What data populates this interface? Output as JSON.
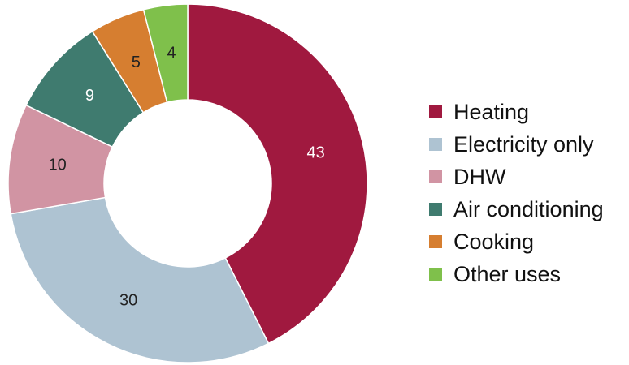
{
  "chart_data": {
    "type": "pie",
    "variant": "donut",
    "title": "",
    "legend_position": "right",
    "series": [
      {
        "name": "Heating",
        "value": 43,
        "color": "#A0193F",
        "label_color": "#ffffff"
      },
      {
        "name": "Electricity only",
        "value": 30,
        "color": "#AEC3D2",
        "label_color": "#222222"
      },
      {
        "name": "DHW",
        "value": 10,
        "color": "#D194A3",
        "label_color": "#222222"
      },
      {
        "name": "Air conditioning",
        "value": 9,
        "color": "#3F7B6F",
        "label_color": "#ffffff"
      },
      {
        "name": "Cooking",
        "value": 5,
        "color": "#D67E30",
        "label_color": "#222222"
      },
      {
        "name": "Other uses",
        "value": 4,
        "color": "#7FC04B",
        "label_color": "#222222"
      }
    ]
  }
}
